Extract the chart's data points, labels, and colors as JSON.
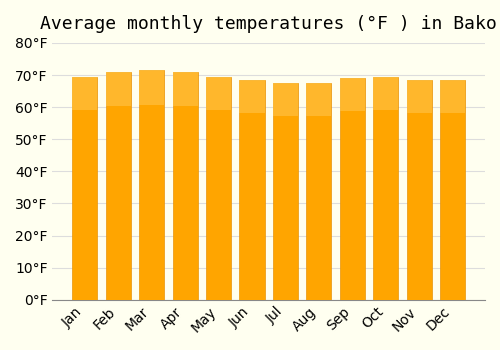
{
  "title": "Average monthly temperatures (°F ) in Bako",
  "months": [
    "Jan",
    "Feb",
    "Mar",
    "Apr",
    "May",
    "Jun",
    "Jul",
    "Aug",
    "Sep",
    "Oct",
    "Nov",
    "Dec"
  ],
  "values": [
    69.5,
    71.0,
    71.5,
    71.0,
    69.5,
    68.5,
    67.5,
    67.5,
    69.0,
    69.5,
    68.5,
    68.5
  ],
  "bar_color_main": "#FFA500",
  "bar_color_gradient_top": "#FFC040",
  "background_color": "#FFFFF0",
  "grid_color": "#DDDDDD",
  "ylim": [
    0,
    80
  ],
  "ytick_step": 10,
  "title_fontsize": 13,
  "tick_fontsize": 10,
  "bar_width": 0.75
}
